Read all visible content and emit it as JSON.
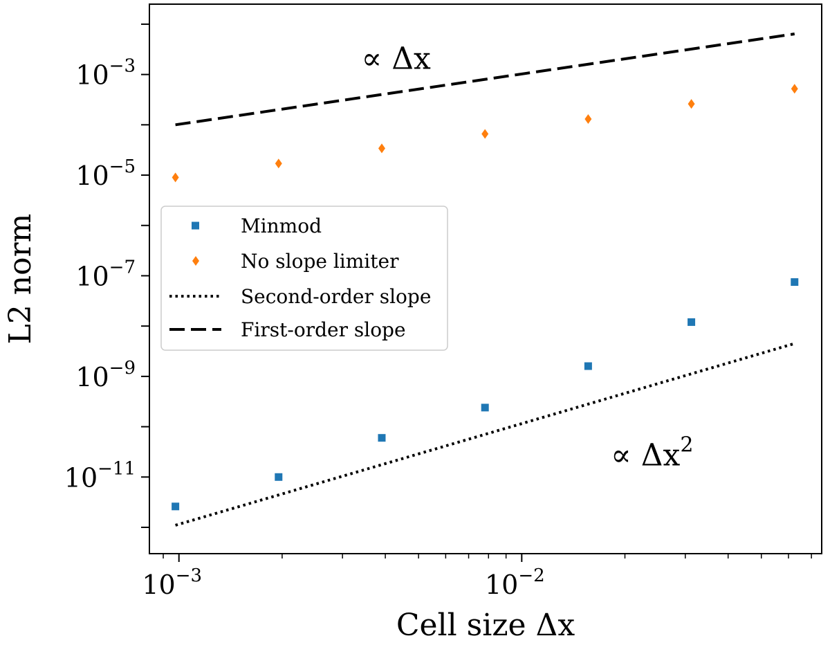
{
  "chart_data": {
    "type": "scatter",
    "xscale": "log",
    "yscale": "log",
    "xlim": [
      0.00082,
      0.075
    ],
    "ylim": [
      3e-13,
      0.025
    ],
    "xlabel": "Cell size Δx",
    "ylabel": "L2 norm",
    "xticks": [
      {
        "mantissa": "10",
        "exp": "−3",
        "value": 0.001
      },
      {
        "mantissa": "10",
        "exp": "−2",
        "value": 0.01
      }
    ],
    "yticks": [
      {
        "mantissa": "10",
        "exp": "−3",
        "value": 0.001
      },
      {
        "mantissa": "10",
        "exp": "−5",
        "value": 1e-05
      },
      {
        "mantissa": "10",
        "exp": "−7",
        "value": 1e-07
      },
      {
        "mantissa": "10",
        "exp": "−9",
        "value": 1e-09
      },
      {
        "mantissa": "10",
        "exp": "−11",
        "value": 1e-11
      }
    ],
    "series": [
      {
        "name": "Minmod",
        "marker": "square",
        "color": "#1f77b4",
        "x": [
          0.0009766,
          0.001953,
          0.003906,
          0.007813,
          0.015625,
          0.03125,
          0.0625
        ],
        "y": [
          2.6e-12,
          1e-11,
          6e-11,
          2.4e-10,
          1.6e-09,
          1.2e-08,
          7.5e-08
        ]
      },
      {
        "name": "No slope limiter",
        "marker": "diamond",
        "color": "#ff7f0e",
        "x": [
          0.0009766,
          0.001953,
          0.003906,
          0.007813,
          0.015625,
          0.03125,
          0.0625
        ],
        "y": [
          9e-06,
          1.7e-05,
          3.4e-05,
          6.6e-05,
          0.00013,
          0.00026,
          0.00052
        ]
      },
      {
        "name": "Second-order slope",
        "style": "dotted",
        "color": "#000000",
        "x": [
          0.0009766,
          0.0625
        ],
        "y": [
          1.1e-12,
          4.5e-09
        ]
      },
      {
        "name": "First-order slope",
        "style": "dashed",
        "color": "#000000",
        "x": [
          0.0009766,
          0.0625
        ],
        "y": [
          0.0001,
          0.0064
        ]
      }
    ],
    "legend": {
      "placement": "center-left",
      "entries": [
        "Minmod",
        "No slope limiter",
        "Second-order slope",
        "First-order slope"
      ]
    },
    "annotations": [
      {
        "text": "∝ Δx",
        "x": 0.0043,
        "y": 0.0013
      },
      {
        "text": "∝ Δx",
        "superscript": "2",
        "x": 0.024,
        "y": 1.7e-11
      }
    ]
  }
}
